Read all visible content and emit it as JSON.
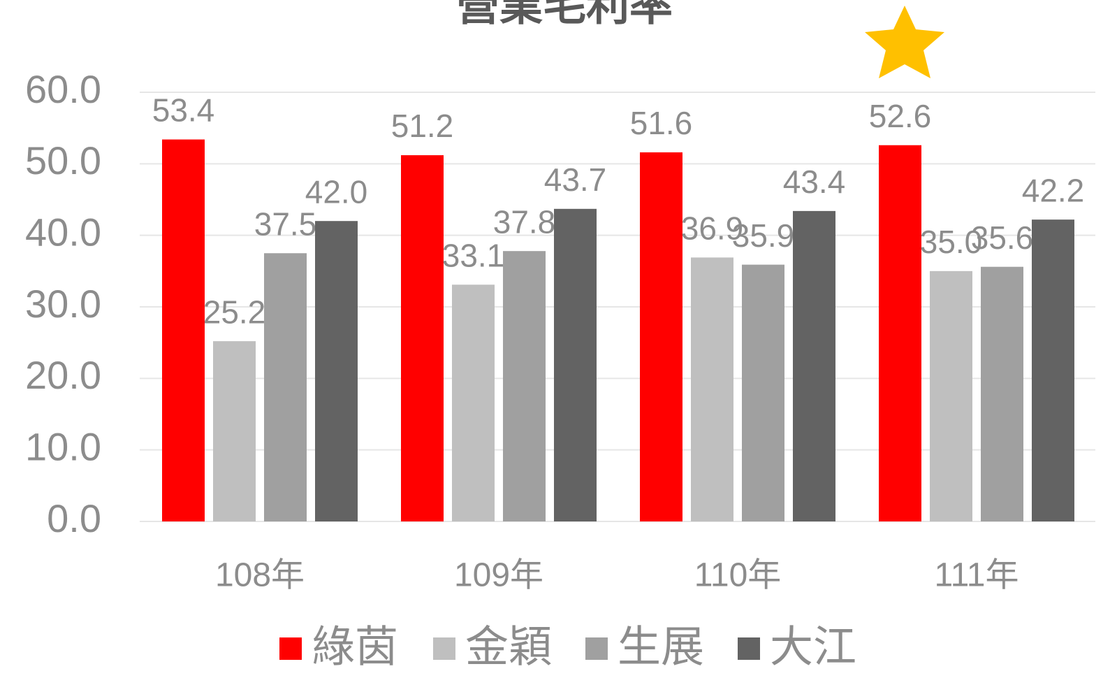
{
  "chart_data": {
    "type": "bar",
    "title": "營業毛利率",
    "categories": [
      "108年",
      "109年",
      "110年",
      "111年"
    ],
    "series": [
      {
        "name": "綠茵",
        "color": "#ff0000",
        "values": [
          53.4,
          51.2,
          51.6,
          52.6
        ],
        "value_labels": [
          "53.4",
          "51.2",
          "51.6",
          "52.6"
        ]
      },
      {
        "name": "金穎",
        "color": "#bfbfbf",
        "values": [
          25.2,
          33.1,
          36.9,
          35.0
        ],
        "value_labels": [
          "25.2",
          "33.1",
          "36.9",
          "35.0"
        ]
      },
      {
        "name": "生展",
        "color": "#a0a0a0",
        "values": [
          37.5,
          37.8,
          35.9,
          35.6
        ],
        "value_labels": [
          "37.5",
          "37.8",
          "35.9",
          "35.6"
        ]
      },
      {
        "name": "大江",
        "color": "#636363",
        "values": [
          42.0,
          43.7,
          43.4,
          42.2
        ],
        "value_labels": [
          "42.0",
          "43.7",
          "43.4",
          "42.2"
        ]
      }
    ],
    "ylim": [
      0,
      60
    ],
    "yticks": [
      {
        "value": 0,
        "label": "0.0"
      },
      {
        "value": 10,
        "label": "10.0"
      },
      {
        "value": 20,
        "label": "20.0"
      },
      {
        "value": 30,
        "label": "30.0"
      },
      {
        "value": 40,
        "label": "40.0"
      },
      {
        "value": 50,
        "label": "50.0"
      },
      {
        "value": 60,
        "label": "60.0"
      }
    ],
    "grid": true,
    "legend": "bottom"
  }
}
